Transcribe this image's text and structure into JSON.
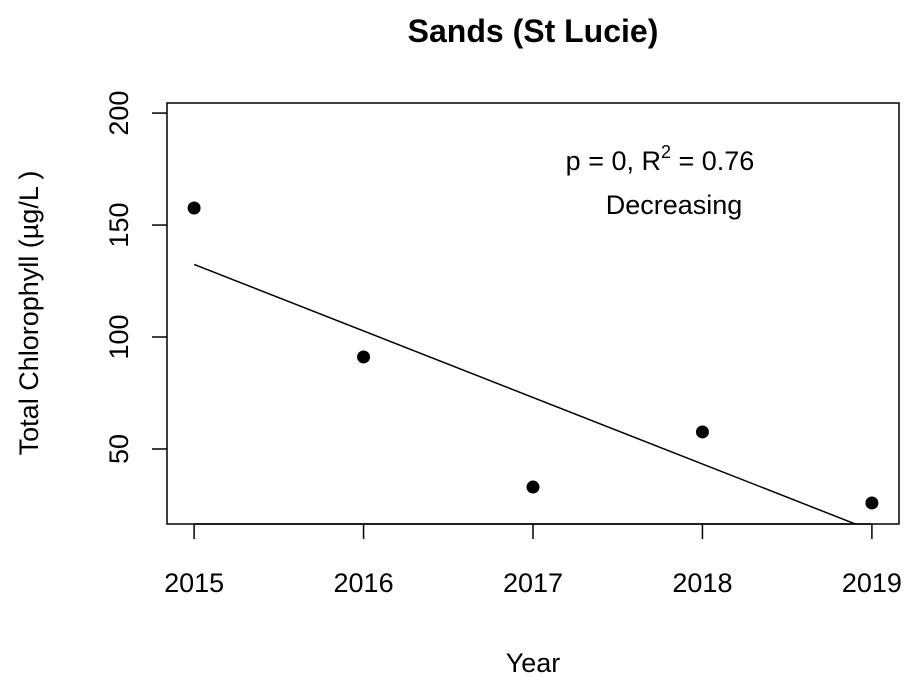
{
  "chart_data": {
    "type": "scatter",
    "title": "Sands (St Lucie)",
    "x_label": "Year",
    "y_label": "Total Chlorophyll (µg/L )",
    "x": [
      2015,
      2016,
      2017,
      2018,
      2019
    ],
    "series": [
      {
        "color": "#000000",
        "values": [
          157.6,
          91.1,
          33.0,
          57.6,
          25.9
        ]
      }
    ],
    "trend": {
      "color": "#000000",
      "x": [
        2015,
        2019
      ],
      "values": [
        132.4,
        13.6
      ]
    },
    "annotation": {
      "before": "p = 0, R",
      "superscript": "2",
      "after": " = 0.76"
    },
    "annotation_line2": "Decreasing",
    "xlim": [
      2014.84,
      2019.16
    ],
    "xticks": [
      2015,
      2016,
      2017,
      2018,
      2019
    ],
    "ylim": [
      16.5,
      204.5
    ],
    "yticks": [
      50,
      100,
      150,
      200
    ]
  }
}
